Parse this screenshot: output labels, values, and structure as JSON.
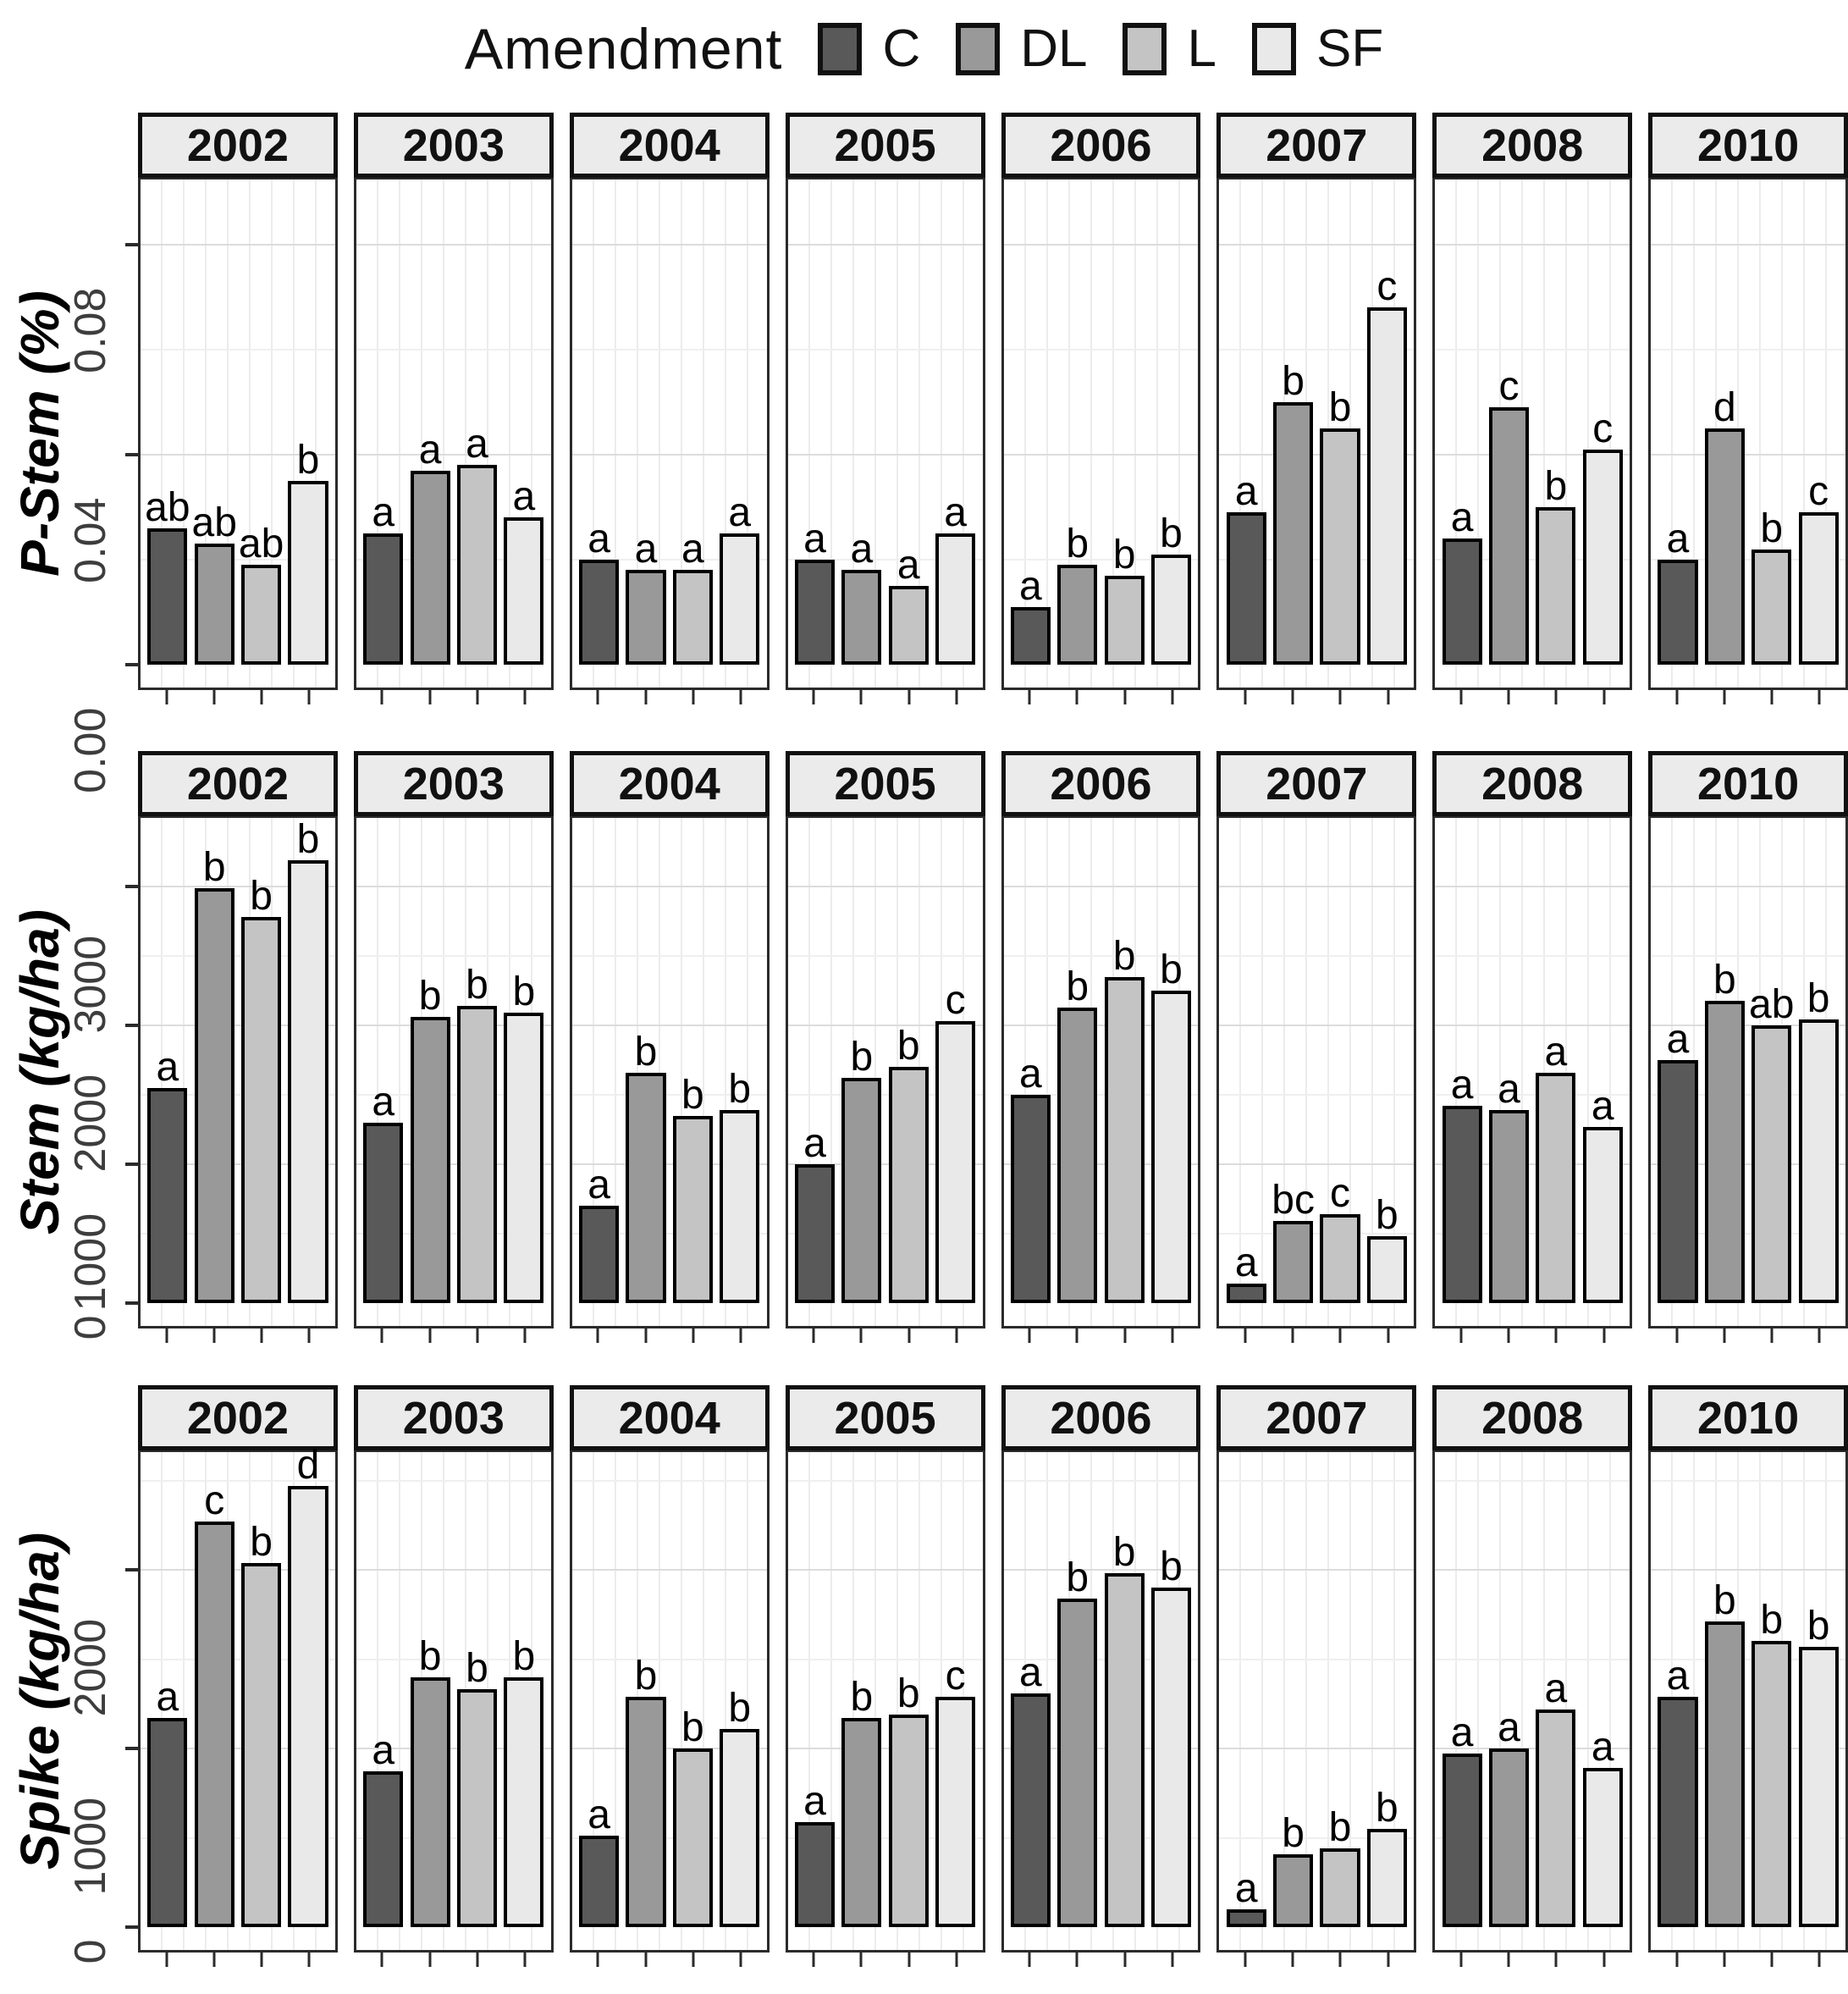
{
  "legend": {
    "title": "Amendment",
    "items": [
      {
        "label": "C",
        "color": "#595959"
      },
      {
        "label": "DL",
        "color": "#999999"
      },
      {
        "label": "L",
        "color": "#c4c4c4"
      },
      {
        "label": "SF",
        "color": "#e9e9e9"
      }
    ]
  },
  "style": {
    "strip_bg": "#ebebeb",
    "panel_border": "#2b2b2b",
    "bar_outline": "#000000",
    "grid_major": "#dcdcdc",
    "grid_minor": "#efefef",
    "tick_label_color": "#3d3d3d"
  },
  "chart_data": [
    {
      "type": "bar",
      "ylabel": "P-Stem (%)",
      "ylim": [
        0,
        0.0924
      ],
      "yticks": [
        {
          "v": 0,
          "label": "0.00"
        },
        {
          "v": 0.04,
          "label": "0.04"
        },
        {
          "v": 0.08,
          "label": "0.08"
        }
      ],
      "minor_step": 0.02,
      "grid": true,
      "legend_position": "top",
      "categories": [
        "2002",
        "2003",
        "2004",
        "2005",
        "2006",
        "2007",
        "2008",
        "2010"
      ],
      "series": [
        "C",
        "DL",
        "L",
        "SF"
      ],
      "panels": [
        {
          "year": "2002",
          "values": [
            0.026,
            0.023,
            0.019,
            0.035
          ],
          "letters": [
            "ab",
            "ab",
            "ab",
            "b"
          ]
        },
        {
          "year": "2003",
          "values": [
            0.025,
            0.037,
            0.038,
            0.028
          ],
          "letters": [
            "a",
            "a",
            "a",
            "a"
          ]
        },
        {
          "year": "2004",
          "values": [
            0.02,
            0.018,
            0.018,
            0.025
          ],
          "letters": [
            "a",
            "a",
            "a",
            "a"
          ]
        },
        {
          "year": "2005",
          "values": [
            0.02,
            0.018,
            0.015,
            0.025
          ],
          "letters": [
            "a",
            "a",
            "a",
            "a"
          ]
        },
        {
          "year": "2006",
          "values": [
            0.011,
            0.019,
            0.017,
            0.021
          ],
          "letters": [
            "a",
            "b",
            "b",
            "b"
          ]
        },
        {
          "year": "2007",
          "values": [
            0.029,
            0.05,
            0.045,
            0.068
          ],
          "letters": [
            "a",
            "b",
            "b",
            "c"
          ]
        },
        {
          "year": "2008",
          "values": [
            0.024,
            0.049,
            0.03,
            0.041
          ],
          "letters": [
            "a",
            "c",
            "b",
            "c"
          ]
        },
        {
          "year": "2010",
          "values": [
            0.02,
            0.045,
            0.022,
            0.029
          ],
          "letters": [
            "a",
            "d",
            "b",
            "c"
          ]
        }
      ]
    },
    {
      "type": "bar",
      "ylabel": "Stem (kg/ha)",
      "ylim": [
        0,
        3494
      ],
      "yticks": [
        {
          "v": 0,
          "label": "0"
        },
        {
          "v": 1000,
          "label": "1000"
        },
        {
          "v": 2000,
          "label": "2000"
        },
        {
          "v": 3000,
          "label": "3000"
        }
      ],
      "minor_step": 500,
      "grid": true,
      "categories": [
        "2002",
        "2003",
        "2004",
        "2005",
        "2006",
        "2007",
        "2008",
        "2010"
      ],
      "series": [
        "C",
        "DL",
        "L",
        "SF"
      ],
      "panels": [
        {
          "year": "2002",
          "values": [
            1550,
            2990,
            2780,
            3190
          ],
          "letters": [
            "a",
            "b",
            "b",
            "b"
          ]
        },
        {
          "year": "2003",
          "values": [
            1300,
            2060,
            2140,
            2090
          ],
          "letters": [
            "a",
            "b",
            "b",
            "b"
          ]
        },
        {
          "year": "2004",
          "values": [
            700,
            1660,
            1350,
            1390
          ],
          "letters": [
            "a",
            "b",
            "b",
            "b"
          ]
        },
        {
          "year": "2005",
          "values": [
            1000,
            1620,
            1700,
            2030
          ],
          "letters": [
            "a",
            "b",
            "b",
            "c"
          ]
        },
        {
          "year": "2006",
          "values": [
            1500,
            2130,
            2350,
            2250
          ],
          "letters": [
            "a",
            "b",
            "b",
            "b"
          ]
        },
        {
          "year": "2007",
          "values": [
            140,
            590,
            640,
            480
          ],
          "letters": [
            "a",
            "bc",
            "c",
            "b"
          ]
        },
        {
          "year": "2008",
          "values": [
            1420,
            1390,
            1660,
            1270
          ],
          "letters": [
            "a",
            "a",
            "a",
            "a"
          ]
        },
        {
          "year": "2010",
          "values": [
            1750,
            2180,
            2000,
            2040
          ],
          "letters": [
            "a",
            "b",
            "ab",
            "b"
          ]
        }
      ]
    },
    {
      "type": "bar",
      "ylabel": "Spike (kg/ha)",
      "ylim": [
        0,
        2659
      ],
      "yticks": [
        {
          "v": 0,
          "label": "0"
        },
        {
          "v": 1000,
          "label": "1000"
        },
        {
          "v": 2000,
          "label": "2000"
        }
      ],
      "minor_step": 500,
      "grid": true,
      "categories": [
        "2002",
        "2003",
        "2004",
        "2005",
        "2006",
        "2007",
        "2008",
        "2010"
      ],
      "series": [
        "C",
        "DL",
        "L",
        "SF"
      ],
      "panels": [
        {
          "year": "2002",
          "values": [
            1170,
            2270,
            2040,
            2470
          ],
          "letters": [
            "a",
            "c",
            "b",
            "d"
          ]
        },
        {
          "year": "2003",
          "values": [
            870,
            1400,
            1330,
            1400
          ],
          "letters": [
            "a",
            "b",
            "b",
            "b"
          ]
        },
        {
          "year": "2004",
          "values": [
            510,
            1290,
            1000,
            1110
          ],
          "letters": [
            "a",
            "b",
            "b",
            "b"
          ]
        },
        {
          "year": "2005",
          "values": [
            590,
            1170,
            1190,
            1290
          ],
          "letters": [
            "a",
            "b",
            "b",
            "c"
          ]
        },
        {
          "year": "2006",
          "values": [
            1310,
            1840,
            1980,
            1900
          ],
          "letters": [
            "a",
            "b",
            "b",
            "b"
          ]
        },
        {
          "year": "2007",
          "values": [
            100,
            410,
            440,
            550
          ],
          "letters": [
            "a",
            "b",
            "b",
            "b"
          ]
        },
        {
          "year": "2008",
          "values": [
            970,
            1000,
            1220,
            890
          ],
          "letters": [
            "a",
            "a",
            "a",
            "a"
          ]
        },
        {
          "year": "2010",
          "values": [
            1290,
            1710,
            1600,
            1570
          ],
          "letters": [
            "a",
            "b",
            "b",
            "b"
          ]
        }
      ]
    }
  ]
}
